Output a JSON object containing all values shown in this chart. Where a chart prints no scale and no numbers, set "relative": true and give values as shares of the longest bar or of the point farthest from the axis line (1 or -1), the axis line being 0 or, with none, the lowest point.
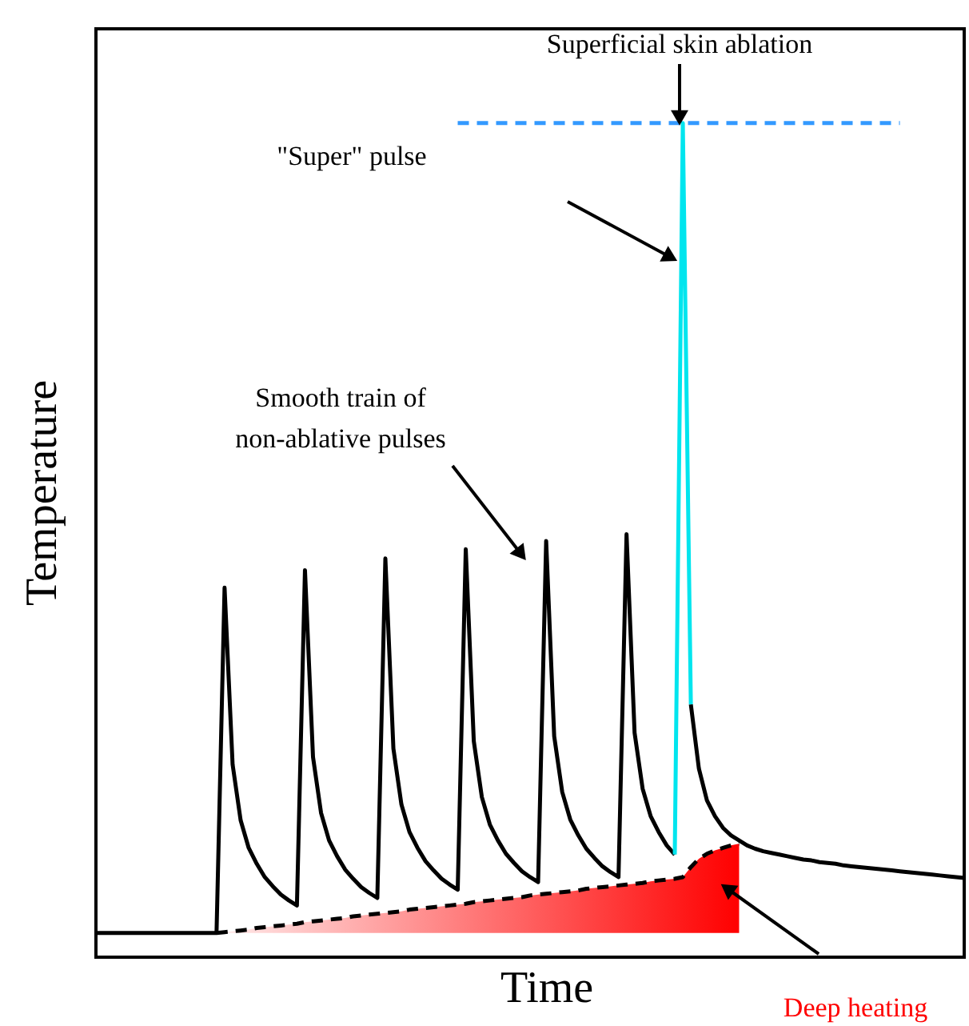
{
  "chart_data": {
    "type": "line",
    "relative": true,
    "xlabel": "Time",
    "ylabel": "Temperature",
    "marker": "none",
    "annotations": [
      "Superficial skin ablation",
      "\"Super\" pulse",
      "Smooth train of\nnon-ablative pulses",
      "Deep heating"
    ],
    "categories": [
      null,
      null,
      null,
      null,
      null,
      null,
      null,
      null,
      null,
      null,
      null,
      null,
      null,
      null,
      null,
      null,
      null,
      null,
      null,
      null,
      null,
      null,
      null,
      null,
      null,
      null,
      null,
      null,
      null,
      null,
      null,
      null,
      null,
      null,
      null,
      null,
      null,
      null,
      null,
      null,
      null,
      null,
      null,
      null,
      null,
      null,
      null,
      null,
      null,
      null,
      null,
      null,
      null,
      null,
      null,
      null,
      null,
      null,
      null,
      null,
      null,
      null,
      null,
      null,
      null,
      null,
      null,
      null,
      null,
      null,
      null,
      null,
      null,
      null,
      null,
      null,
      null,
      null,
      null,
      null,
      null,
      null,
      null,
      null,
      null,
      null,
      null,
      null,
      null,
      null,
      null,
      null,
      null,
      null,
      null,
      null,
      null,
      null,
      null,
      null,
      null,
      null,
      null,
      null,
      null,
      null,
      null,
      null,
      null
    ],
    "series": [
      {
        "type": "line",
        "color": "#000000",
        "line_style": "dashed",
        "values": [
          null,
          null,
          null,
          null,
          null,
          null,
          null,
          null,
          null,
          null,
          null,
          null,
          null,
          null,
          null,
          0.029,
          0.03,
          0.031,
          0.032,
          0.033,
          0.035,
          0.036,
          0.037,
          0.038,
          0.039,
          0.04,
          0.042,
          0.043,
          0.044,
          0.045,
          0.046,
          0.047,
          0.049,
          0.05,
          0.051,
          0.052,
          0.053,
          0.054,
          0.055,
          0.057,
          0.058,
          0.059,
          0.06,
          0.061,
          0.062,
          0.063,
          0.064,
          0.066,
          0.067,
          0.068,
          0.069,
          0.07,
          0.071,
          0.072,
          0.074,
          0.075,
          0.076,
          0.077,
          0.078,
          0.079,
          0.08,
          0.082,
          0.083,
          0.084,
          0.085,
          0.086,
          0.087,
          0.088,
          0.089,
          0.091,
          0.092,
          0.093,
          0.094,
          0.096,
          0.108,
          0.118,
          0.124,
          0.128,
          0.131,
          0.134,
          0.136,
          null,
          null,
          null,
          null,
          null,
          null,
          null,
          null,
          null,
          null,
          null,
          null,
          null,
          null,
          null,
          null,
          null,
          null,
          null,
          null,
          null,
          null,
          null,
          null,
          null,
          null,
          null,
          null
        ],
        "lower": [
          null,
          null,
          null,
          null,
          null,
          null,
          null,
          null,
          null,
          null,
          null,
          null,
          null,
          null,
          null,
          0.029,
          0.029,
          0.029,
          0.029,
          0.029,
          0.029,
          0.029,
          0.029,
          0.029,
          0.029,
          0.029,
          0.029,
          0.029,
          0.029,
          0.029,
          0.029,
          0.029,
          0.029,
          0.029,
          0.029,
          0.029,
          0.029,
          0.029,
          0.029,
          0.029,
          0.029,
          0.029,
          0.029,
          0.029,
          0.029,
          0.029,
          0.029,
          0.029,
          0.029,
          0.029,
          0.029,
          0.029,
          0.029,
          0.029,
          0.029,
          0.029,
          0.029,
          0.029,
          0.029,
          0.029,
          0.029,
          0.029,
          0.029,
          0.029,
          0.029,
          0.029,
          0.029,
          0.029,
          0.029,
          0.029,
          0.029,
          0.029,
          0.029,
          0.029,
          0.029,
          0.029,
          0.029,
          0.029,
          0.029,
          0.029,
          0.029,
          null,
          null,
          null,
          null,
          null,
          null,
          null,
          null,
          null,
          null,
          null,
          null,
          null,
          null,
          null,
          null,
          null,
          null,
          null,
          null,
          null,
          null,
          null,
          null,
          null,
          null,
          null,
          null
        ],
        "upper": [
          null,
          null,
          null,
          null,
          null,
          null,
          null,
          null,
          null,
          null,
          null,
          null,
          null,
          null,
          null,
          0.029,
          0.03,
          0.031,
          0.032,
          0.033,
          0.035,
          0.036,
          0.037,
          0.038,
          0.039,
          0.04,
          0.042,
          0.043,
          0.044,
          0.045,
          0.046,
          0.047,
          0.049,
          0.05,
          0.051,
          0.052,
          0.053,
          0.054,
          0.055,
          0.057,
          0.058,
          0.059,
          0.06,
          0.061,
          0.062,
          0.063,
          0.064,
          0.066,
          0.067,
          0.068,
          0.069,
          0.07,
          0.071,
          0.072,
          0.074,
          0.075,
          0.076,
          0.077,
          0.078,
          0.079,
          0.08,
          0.082,
          0.083,
          0.084,
          0.085,
          0.086,
          0.087,
          0.088,
          0.089,
          0.091,
          0.092,
          0.093,
          0.094,
          0.096,
          0.108,
          0.118,
          0.124,
          0.128,
          0.131,
          0.134,
          0.136,
          null,
          null,
          null,
          null,
          null,
          null,
          null,
          null,
          null,
          null,
          null,
          null,
          null,
          null,
          null,
          null,
          null,
          null,
          null,
          null,
          null,
          null,
          null,
          null,
          null,
          null,
          null,
          null
        ]
      },
      {
        "type": "line",
        "color": "#000000",
        "line_style": "solid",
        "values": [
          0.029,
          0.029,
          0.029,
          0.029,
          0.029,
          0.029,
          0.029,
          0.029,
          0.029,
          0.029,
          0.029,
          0.029,
          0.029,
          0.029,
          0.029,
          0.029,
          0.443,
          0.231,
          0.164,
          0.131,
          0.112,
          0.096,
          0.085,
          0.075,
          0.068,
          0.062,
          0.464,
          0.24,
          0.173,
          0.14,
          0.121,
          0.105,
          0.094,
          0.084,
          0.077,
          0.071,
          0.478,
          0.25,
          0.183,
          0.15,
          0.131,
          0.115,
          0.104,
          0.094,
          0.087,
          0.081,
          0.489,
          0.259,
          0.192,
          0.159,
          0.14,
          0.124,
          0.113,
          0.103,
          0.096,
          0.09,
          0.499,
          0.265,
          0.198,
          0.165,
          0.146,
          0.13,
          0.119,
          0.109,
          0.102,
          0.096,
          0.507,
          0.269,
          0.202,
          0.169,
          0.15,
          0.134,
          0.123,
          null,
          null,
          null,
          null,
          null,
          null,
          null,
          null,
          null,
          null,
          null,
          null,
          null,
          null,
          null,
          null,
          null,
          null,
          null,
          null,
          null,
          null,
          null,
          null,
          null,
          null,
          null,
          null,
          null,
          null,
          null,
          null,
          null,
          null,
          null,
          null
        ]
      },
      {
        "type": "line",
        "color": "#00e5ee",
        "line_style": "solid",
        "values": [
          null,
          null,
          null,
          null,
          null,
          null,
          null,
          null,
          null,
          null,
          null,
          null,
          null,
          null,
          null,
          null,
          null,
          null,
          null,
          null,
          null,
          null,
          null,
          null,
          null,
          null,
          null,
          null,
          null,
          null,
          null,
          null,
          null,
          null,
          null,
          null,
          null,
          null,
          null,
          null,
          null,
          null,
          null,
          null,
          null,
          null,
          null,
          null,
          null,
          null,
          null,
          null,
          null,
          null,
          null,
          null,
          null,
          null,
          null,
          null,
          null,
          null,
          null,
          null,
          null,
          null,
          null,
          null,
          null,
          null,
          null,
          null,
          0.123,
          1.0,
          0.303,
          null,
          null,
          null,
          null,
          null,
          null,
          null,
          null,
          null,
          null,
          null,
          null,
          null,
          null,
          null,
          null,
          null,
          null,
          null,
          null,
          null,
          null,
          null,
          null,
          null,
          null,
          null,
          null,
          null,
          null,
          null,
          null,
          null,
          null
        ]
      },
      {
        "color": "#000000",
        "line_style": "solid",
        "values": [
          null,
          null,
          null,
          null,
          null,
          null,
          null,
          null,
          null,
          null,
          null,
          null,
          null,
          null,
          null,
          null,
          null,
          null,
          null,
          null,
          null,
          null,
          null,
          null,
          null,
          null,
          null,
          null,
          null,
          null,
          null,
          null,
          null,
          null,
          null,
          null,
          null,
          null,
          null,
          null,
          null,
          null,
          null,
          null,
          null,
          null,
          null,
          null,
          null,
          null,
          null,
          null,
          null,
          null,
          null,
          null,
          null,
          null,
          null,
          null,
          null,
          null,
          null,
          null,
          null,
          null,
          null,
          null,
          null,
          null,
          null,
          null,
          null,
          null,
          0.303,
          0.226,
          0.188,
          0.169,
          0.155,
          0.146,
          0.14,
          0.134,
          0.13,
          0.127,
          0.125,
          0.123,
          0.121,
          0.119,
          0.117,
          0.116,
          0.114,
          0.113,
          0.112,
          0.11,
          0.109,
          0.108,
          0.107,
          0.106,
          0.105,
          0.104,
          0.103,
          0.102,
          0.101,
          0.1,
          0.099,
          0.098,
          0.097,
          0.096,
          0.095
        ]
      },
      {
        "type": "line",
        "color": "#3399ff",
        "line_style": "dashed",
        "values": [
          null,
          null,
          null,
          null,
          null,
          null,
          null,
          null,
          null,
          null,
          null,
          null,
          null,
          null,
          null,
          null,
          null,
          null,
          null,
          null,
          null,
          null,
          null,
          null,
          null,
          null,
          null,
          null,
          null,
          null,
          null,
          null,
          null,
          null,
          null,
          null,
          null,
          null,
          null,
          null,
          null,
          null,
          null,
          null,
          null,
          1.0,
          1.0,
          1.0,
          1.0,
          1.0,
          1.0,
          1.0,
          1.0,
          1.0,
          1.0,
          1.0,
          1.0,
          1.0,
          1.0,
          1.0,
          1.0,
          1.0,
          1.0,
          1.0,
          1.0,
          1.0,
          1.0,
          1.0,
          1.0,
          1.0,
          1.0,
          1.0,
          1.0,
          1.0,
          1.0,
          1.0,
          1.0,
          1.0,
          1.0,
          1.0,
          1.0,
          1.0,
          1.0,
          1.0,
          1.0,
          1.0,
          1.0,
          1.0,
          1.0,
          1.0,
          1.0,
          1.0,
          1.0,
          1.0,
          1.0,
          1.0,
          1.0,
          1.0,
          1.0,
          1.0,
          1.0,
          null,
          null,
          null,
          null,
          null,
          null,
          null,
          null
        ]
      }
    ]
  }
}
